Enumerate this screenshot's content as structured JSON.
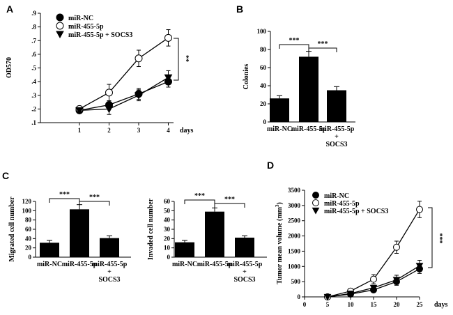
{
  "chart_data": [
    {
      "panel": "A",
      "type": "line",
      "x": [
        1,
        2,
        3,
        4
      ],
      "xticks": [
        "1",
        "2",
        "3",
        "4"
      ],
      "xlabel": "days",
      "ylabel": "OD570",
      "ylim": [
        0.1,
        0.9
      ],
      "yticks": [
        ".1",
        ".2",
        ".3",
        ".4",
        ".5",
        ".6",
        ".7",
        ".8",
        ".9"
      ],
      "series": [
        {
          "name": "miR-NC",
          "marker": "filled-circle",
          "values": [
            0.19,
            0.23,
            0.31,
            0.4
          ],
          "errors": [
            0.01,
            0.03,
            0.04,
            0.04
          ]
        },
        {
          "name": "miR-455-5p",
          "marker": "open-circle",
          "values": [
            0.2,
            0.32,
            0.57,
            0.72
          ],
          "errors": [
            0.01,
            0.06,
            0.06,
            0.06
          ]
        },
        {
          "name": "miR-455-5p + SOCS3",
          "marker": "filled-triangle",
          "values": [
            0.19,
            0.2,
            0.3,
            0.43
          ],
          "errors": [
            0.01,
            0.04,
            0.04,
            0.05
          ]
        }
      ],
      "significance": "**"
    },
    {
      "panel": "B",
      "type": "bar",
      "categories": [
        "miR-NC",
        "miR-455-5p",
        "miR-455-5p"
      ],
      "category_sublabels": [
        "",
        "",
        "+\nSOCS3"
      ],
      "values": [
        26,
        72,
        35
      ],
      "errors": [
        3,
        6,
        4
      ],
      "ylabel": "Colonies",
      "ylim": [
        0,
        100
      ],
      "yticks": [
        "0",
        "20",
        "40",
        "60",
        "80",
        "100"
      ],
      "significance": [
        "***",
        "***"
      ]
    },
    {
      "panel": "C",
      "type": "bar",
      "categories": [
        "miR-NC",
        "miR-455-5p",
        "miR-455-5p"
      ],
      "category_sublabels": [
        "",
        "",
        "+\nSOCS3"
      ],
      "values": [
        31,
        103,
        41
      ],
      "errors": [
        5,
        10,
        5
      ],
      "ylabel": "Migrated cell number",
      "ylim": [
        0,
        120
      ],
      "yticks": [
        "0",
        "20",
        "40",
        "60",
        "80",
        "100",
        "120"
      ],
      "significance": [
        "***",
        "***"
      ]
    },
    {
      "panel": "C",
      "type": "bar",
      "categories": [
        "miR-NC",
        "miR-455-5p",
        "miR-455-5p"
      ],
      "category_sublabels": [
        "",
        "",
        "+\nSOCS3"
      ],
      "values": [
        16,
        49,
        21
      ],
      "errors": [
        2,
        4,
        2
      ],
      "ylabel": "Invaded cell number",
      "ylim": [
        0,
        60
      ],
      "yticks": [
        "0",
        "10",
        "20",
        "30",
        "40",
        "50",
        "60"
      ],
      "significance": [
        "***",
        "***"
      ]
    },
    {
      "panel": "D",
      "type": "line",
      "x": [
        5,
        10,
        15,
        20,
        25
      ],
      "xticks": [
        "0",
        "5",
        "10",
        "15",
        "20",
        "25"
      ],
      "xlim": [
        0,
        25
      ],
      "xlabel": "days",
      "ylabel": "Tumor mean volume (mm3)",
      "ylim": [
        0,
        3500
      ],
      "yticks": [
        "0",
        "500",
        "1000",
        "1500",
        "2000",
        "2500",
        "3000",
        "3500"
      ],
      "series": [
        {
          "name": "miR-NC",
          "marker": "filled-circle",
          "values": [
            0,
            90,
            230,
            500,
            920
          ],
          "errors": [
            0,
            20,
            60,
            120,
            150
          ]
        },
        {
          "name": "miR-455-5p",
          "marker": "open-circle",
          "values": [
            0,
            190,
            580,
            1630,
            2870
          ],
          "errors": [
            0,
            40,
            150,
            200,
            270
          ]
        },
        {
          "name": "miR-455-5p + SOCS3",
          "marker": "filled-triangle",
          "values": [
            0,
            110,
            300,
            560,
            1020
          ],
          "errors": [
            0,
            25,
            80,
            150,
            180
          ]
        }
      ],
      "significance": "***"
    }
  ]
}
